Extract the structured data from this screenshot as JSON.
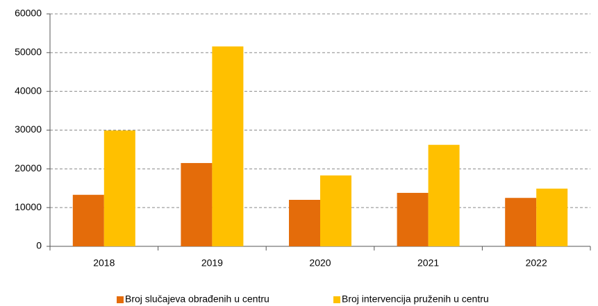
{
  "chart_data": {
    "type": "bar",
    "categories": [
      "2018",
      "2019",
      "2020",
      "2021",
      "2022"
    ],
    "series": [
      {
        "name": "Broj slučajeva obrađenih u centru",
        "color": "#e46c0a",
        "values": [
          13300,
          21500,
          12000,
          13800,
          12500
        ]
      },
      {
        "name": "Broj intervencija pruženih u centru",
        "color": "#ffc000",
        "values": [
          29900,
          51600,
          18300,
          26200,
          14900
        ]
      }
    ],
    "ylim": [
      0,
      60000
    ],
    "yticks": [
      0,
      10000,
      20000,
      30000,
      40000,
      50000,
      60000
    ],
    "grid": true,
    "legend": "bottom"
  }
}
